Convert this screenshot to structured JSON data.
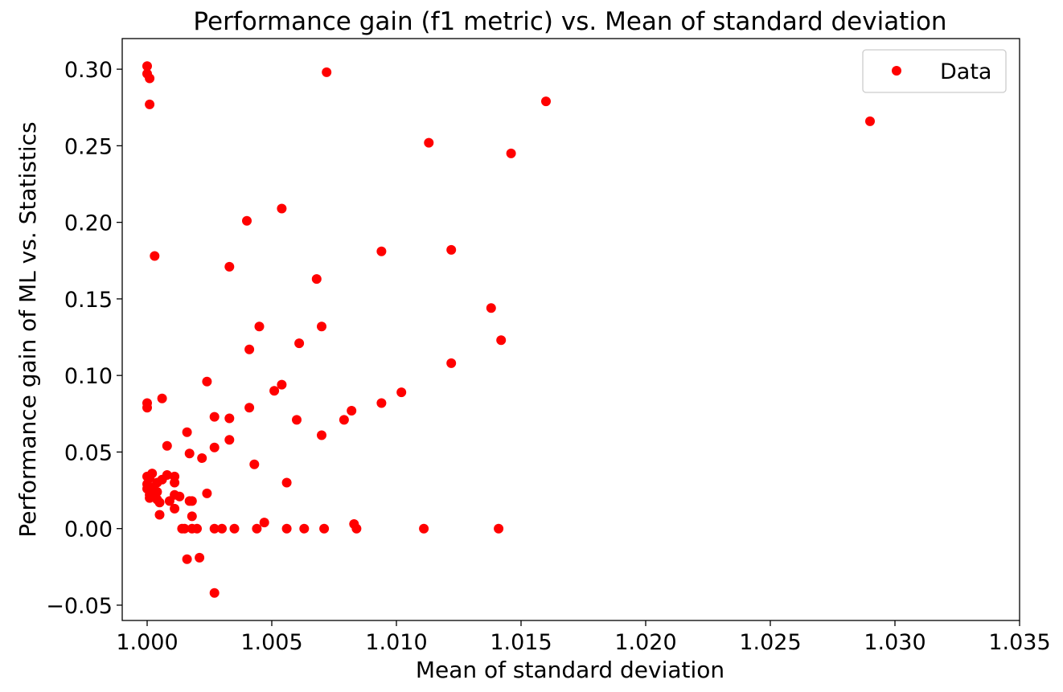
{
  "chart_data": {
    "type": "scatter",
    "title": "Performance gain (f1 metric) vs. Mean of standard deviation",
    "xlabel": "Mean of standard deviation",
    "ylabel": "Performance gain of ML vs. Statistics",
    "xlim": [
      0.999,
      1.035
    ],
    "ylim": [
      -0.06,
      0.32
    ],
    "xticks": [
      1.0,
      1.005,
      1.01,
      1.015,
      1.02,
      1.025,
      1.03,
      1.035
    ],
    "xtick_labels": [
      "1.000",
      "1.005",
      "1.010",
      "1.015",
      "1.020",
      "1.025",
      "1.030",
      "1.035"
    ],
    "yticks": [
      -0.05,
      0.0,
      0.05,
      0.1,
      0.15,
      0.2,
      0.25,
      0.3
    ],
    "ytick_labels": [
      "−0.05",
      "0.00",
      "0.05",
      "0.10",
      "0.15",
      "0.20",
      "0.25",
      "0.30"
    ],
    "grid": false,
    "legend_position": "top-right",
    "series": [
      {
        "name": "Data",
        "color": "#ff0000",
        "marker": "circle",
        "points": [
          [
            1.0,
            0.302
          ],
          [
            1.0,
            0.297
          ],
          [
            1.0001,
            0.294
          ],
          [
            1.0001,
            0.277
          ],
          [
            1.0003,
            0.178
          ],
          [
            1.0072,
            0.298
          ],
          [
            1.016,
            0.279
          ],
          [
            1.029,
            0.266
          ],
          [
            1.0113,
            0.252
          ],
          [
            1.0146,
            0.245
          ],
          [
            1.0054,
            0.209
          ],
          [
            1.004,
            0.201
          ],
          [
            1.0094,
            0.181
          ],
          [
            1.0122,
            0.182
          ],
          [
            1.0033,
            0.171
          ],
          [
            1.0068,
            0.163
          ],
          [
            1.0138,
            0.144
          ],
          [
            1.0045,
            0.132
          ],
          [
            1.007,
            0.132
          ],
          [
            1.0142,
            0.123
          ],
          [
            1.0061,
            0.121
          ],
          [
            1.0041,
            0.117
          ],
          [
            1.0122,
            0.108
          ],
          [
            1.0024,
            0.096
          ],
          [
            1.0054,
            0.094
          ],
          [
            1.0051,
            0.09
          ],
          [
            1.0102,
            0.089
          ],
          [
            1.0006,
            0.085
          ],
          [
            1.0,
            0.082
          ],
          [
            1.0,
            0.079
          ],
          [
            1.0094,
            0.082
          ],
          [
            1.0041,
            0.079
          ],
          [
            1.0082,
            0.077
          ],
          [
            1.0027,
            0.073
          ],
          [
            1.0033,
            0.072
          ],
          [
            1.006,
            0.071
          ],
          [
            1.0079,
            0.071
          ],
          [
            1.0016,
            0.063
          ],
          [
            1.007,
            0.061
          ],
          [
            1.0033,
            0.058
          ],
          [
            1.0008,
            0.054
          ],
          [
            1.0027,
            0.053
          ],
          [
            1.0017,
            0.049
          ],
          [
            1.0022,
            0.046
          ],
          [
            1.0043,
            0.042
          ],
          [
            1.0002,
            0.036
          ],
          [
            1.0,
            0.034
          ],
          [
            1.0001,
            0.033
          ],
          [
            1.0008,
            0.035
          ],
          [
            1.0006,
            0.032
          ],
          [
            1.0011,
            0.034
          ],
          [
            1.0004,
            0.03
          ],
          [
            1.0011,
            0.03
          ],
          [
            1.0056,
            0.03
          ],
          [
            1.0,
            0.029
          ],
          [
            1.0002,
            0.027
          ],
          [
            1.0,
            0.026
          ],
          [
            1.0003,
            0.025
          ],
          [
            1.0004,
            0.024
          ],
          [
            1.0002,
            0.023
          ],
          [
            1.0024,
            0.023
          ],
          [
            1.0011,
            0.022
          ],
          [
            1.0001,
            0.022
          ],
          [
            1.0013,
            0.021
          ],
          [
            1.0001,
            0.02
          ],
          [
            1.0004,
            0.019
          ],
          [
            1.0009,
            0.018
          ],
          [
            1.0017,
            0.018
          ],
          [
            1.0018,
            0.018
          ],
          [
            1.0005,
            0.017
          ],
          [
            1.0011,
            0.013
          ],
          [
            1.0005,
            0.009
          ],
          [
            1.0018,
            0.008
          ],
          [
            1.0047,
            0.004
          ],
          [
            1.0083,
            0.003
          ],
          [
            1.0014,
            0.0
          ],
          [
            1.0015,
            0.0
          ],
          [
            1.0018,
            0.0
          ],
          [
            1.002,
            0.0
          ],
          [
            1.0027,
            0.0
          ],
          [
            1.003,
            0.0
          ],
          [
            1.0035,
            0.0
          ],
          [
            1.0044,
            0.0
          ],
          [
            1.0056,
            0.0
          ],
          [
            1.0063,
            0.0
          ],
          [
            1.0071,
            0.0
          ],
          [
            1.0084,
            0.0
          ],
          [
            1.0111,
            0.0
          ],
          [
            1.0141,
            0.0
          ],
          [
            1.0016,
            -0.02
          ],
          [
            1.0021,
            -0.019
          ],
          [
            1.0027,
            -0.042
          ]
        ]
      }
    ]
  }
}
